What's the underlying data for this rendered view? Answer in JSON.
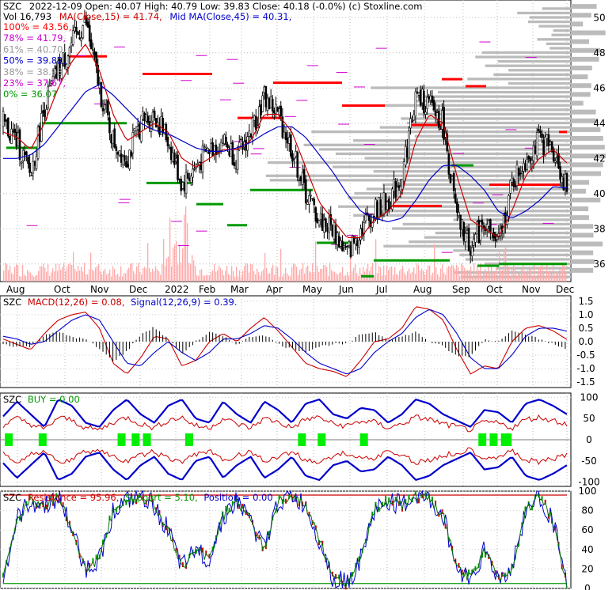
{
  "header": {
    "line1_ticker": "SZC",
    "line1_rest": "2022-12-09 Open: 40.07  High: 40.79  Low: 39.83  Close: 40.18 (-0.0%) (c) Stoxline.com",
    "vol_label": "Vol 16,793",
    "ma_label": "MA(Close,15) = 41.74,",
    "midma_label": "Mid MA(Close,45) = 40.31,"
  },
  "colors": {
    "price": "#000000",
    "ma": "#cc0000",
    "midma": "#0000cc",
    "resistance": "#ff0000",
    "support": "#009900",
    "volume": "#ffaaaa",
    "profile": "#bbbbbb",
    "fib": "#d000d0",
    "buy": "#00ee00"
  },
  "fib_levels": [
    {
      "label": "100% = 43.56,",
      "color": "#ff0000"
    },
    {
      "label": "78% = 41.79,",
      "color": "#d000d0"
    },
    {
      "label": "61% = 40.70,",
      "color": "#999999"
    },
    {
      "label": "50% = 39.82,",
      "color": "#0000cc"
    },
    {
      "label": "38% = 38.93,",
      "color": "#999999"
    },
    {
      "label": "23% = 37.67,",
      "color": "#d000d0"
    },
    {
      "label": "0% = 36.07",
      "color": "#009900"
    }
  ],
  "macd_title": {
    "ticker": "SZC",
    "a": "MACD(12,26) = 0.08,",
    "b": "Signal(12,26,9) = 0.39."
  },
  "buy_title": {
    "ticker": "SZC",
    "a": "BUY = 0.00"
  },
  "res_title": {
    "ticker": "SZC",
    "a": "Resistance = 95.96,",
    "b": "Support = 5.10,",
    "c": "Position = 0.00"
  },
  "chart_data": [
    {
      "type": "candlestick",
      "x_months": [
        "Aug",
        "Oct",
        "Nov",
        "Dec",
        "2022",
        "Feb",
        "Mar",
        "Apr",
        "May",
        "Jun",
        "Jul",
        "Aug",
        "Sep",
        "Oct",
        "Nov",
        "Dec"
      ],
      "y_ticks": [
        "36",
        "38",
        "40",
        "42",
        "44",
        "46",
        "48",
        "50"
      ],
      "ylim": [
        35,
        51
      ],
      "closes": [
        44.0,
        43.0,
        41.0,
        45.0,
        47.0,
        48.5,
        49.8,
        46.0,
        43.0,
        42.0,
        44.0,
        44.5,
        43.0,
        40.5,
        41.5,
        42.5,
        43.0,
        42.0,
        43.5,
        45.5,
        44.5,
        42.5,
        40.0,
        38.5,
        38.0,
        36.5,
        38.0,
        39.0,
        39.5,
        41.0,
        45.5,
        45.0,
        44.0,
        38.5,
        37.0,
        38.5,
        37.0,
        40.5,
        42.0,
        43.0,
        42.5,
        40.18
      ],
      "ma15": [
        43.5,
        43.2,
        42.5,
        44.0,
        46.0,
        47.5,
        48.5,
        47.0,
        44.5,
        43.0,
        43.5,
        44.0,
        43.5,
        42.0,
        41.5,
        42.0,
        42.5,
        42.5,
        43.0,
        44.5,
        44.5,
        43.5,
        41.5,
        39.5,
        38.5,
        37.5,
        37.5,
        38.5,
        39.0,
        40.0,
        43.0,
        44.5,
        44.0,
        41.0,
        38.5,
        38.0,
        37.5,
        39.0,
        41.0,
        42.0,
        42.5,
        41.74
      ],
      "midma45": [
        42.0,
        42.0,
        42.2,
        42.8,
        43.8,
        44.8,
        45.8,
        46.2,
        45.6,
        44.8,
        44.0,
        43.6,
        43.4,
        43.0,
        42.6,
        42.4,
        42.4,
        42.6,
        42.9,
        43.4,
        43.8,
        43.8,
        43.2,
        42.2,
        41.2,
        40.0,
        39.0,
        38.6,
        38.4,
        38.6,
        39.6,
        40.8,
        41.6,
        41.6,
        41.0,
        40.2,
        39.0,
        38.6,
        39.0,
        39.6,
        40.4,
        40.31
      ]
    },
    {
      "type": "line",
      "name_macd": "MACD(12,26)",
      "ylim": [
        -1.7,
        1.7
      ],
      "y_ticks": [
        "1.5",
        "1.0",
        "0.5",
        "0.0",
        "-0.5",
        "-1.0",
        "-1.5"
      ],
      "macd": [
        0.1,
        -0.1,
        -0.3,
        0.3,
        0.8,
        1.0,
        1.1,
        0.5,
        -0.8,
        -1.2,
        -0.6,
        0.2,
        0.1,
        -0.9,
        -0.7,
        0.0,
        0.3,
        0.0,
        0.5,
        0.9,
        0.4,
        -0.2,
        -0.8,
        -1.0,
        -1.1,
        -1.3,
        -0.7,
        0.0,
        0.1,
        0.5,
        1.3,
        1.2,
        0.8,
        -0.3,
        -1.2,
        -0.9,
        -1.0,
        0.0,
        0.5,
        0.6,
        0.4,
        0.08
      ],
      "signal": [
        0.2,
        0.1,
        -0.1,
        0.0,
        0.4,
        0.8,
        1.0,
        0.8,
        0.0,
        -0.8,
        -0.9,
        -0.4,
        0.0,
        -0.4,
        -0.7,
        -0.4,
        0.1,
        0.1,
        0.3,
        0.6,
        0.5,
        0.1,
        -0.4,
        -0.8,
        -1.0,
        -1.2,
        -1.0,
        -0.4,
        0.0,
        0.3,
        0.9,
        1.2,
        1.0,
        0.3,
        -0.6,
        -1.0,
        -1.0,
        -0.5,
        0.2,
        0.5,
        0.5,
        0.39
      ]
    },
    {
      "type": "line",
      "ylim": [
        -110,
        110
      ],
      "y_ticks": [
        "100",
        "50",
        "0",
        "-50",
        "-100"
      ],
      "upper": [
        55,
        90,
        60,
        30,
        95,
        80,
        40,
        30,
        70,
        95,
        60,
        40,
        80,
        95,
        50,
        40,
        90,
        60,
        40,
        90,
        70,
        40,
        85,
        95,
        60,
        50,
        75,
        70,
        40,
        60,
        95,
        85,
        60,
        45,
        30,
        70,
        65,
        40,
        85,
        95,
        80,
        60
      ],
      "buy_markers": [
        0.01,
        0.07,
        0.21,
        0.235,
        0.255,
        0.33,
        0.53,
        0.565,
        0.64,
        0.85,
        0.87,
        0.89,
        0.895
      ]
    },
    {
      "type": "line",
      "ylim": [
        0,
        100
      ],
      "y_ticks": [
        "100",
        "80",
        "60",
        "40",
        "20",
        "0"
      ],
      "position": [
        10,
        70,
        90,
        85,
        95,
        60,
        20,
        30,
        80,
        90,
        95,
        85,
        60,
        20,
        40,
        30,
        75,
        90,
        70,
        40,
        90,
        95,
        85,
        50,
        10,
        5,
        30,
        80,
        90,
        85,
        95,
        90,
        75,
        20,
        10,
        40,
        10,
        20,
        80,
        95,
        70,
        0
      ],
      "resistance_level": 95.96,
      "support_level": 5.1
    }
  ]
}
